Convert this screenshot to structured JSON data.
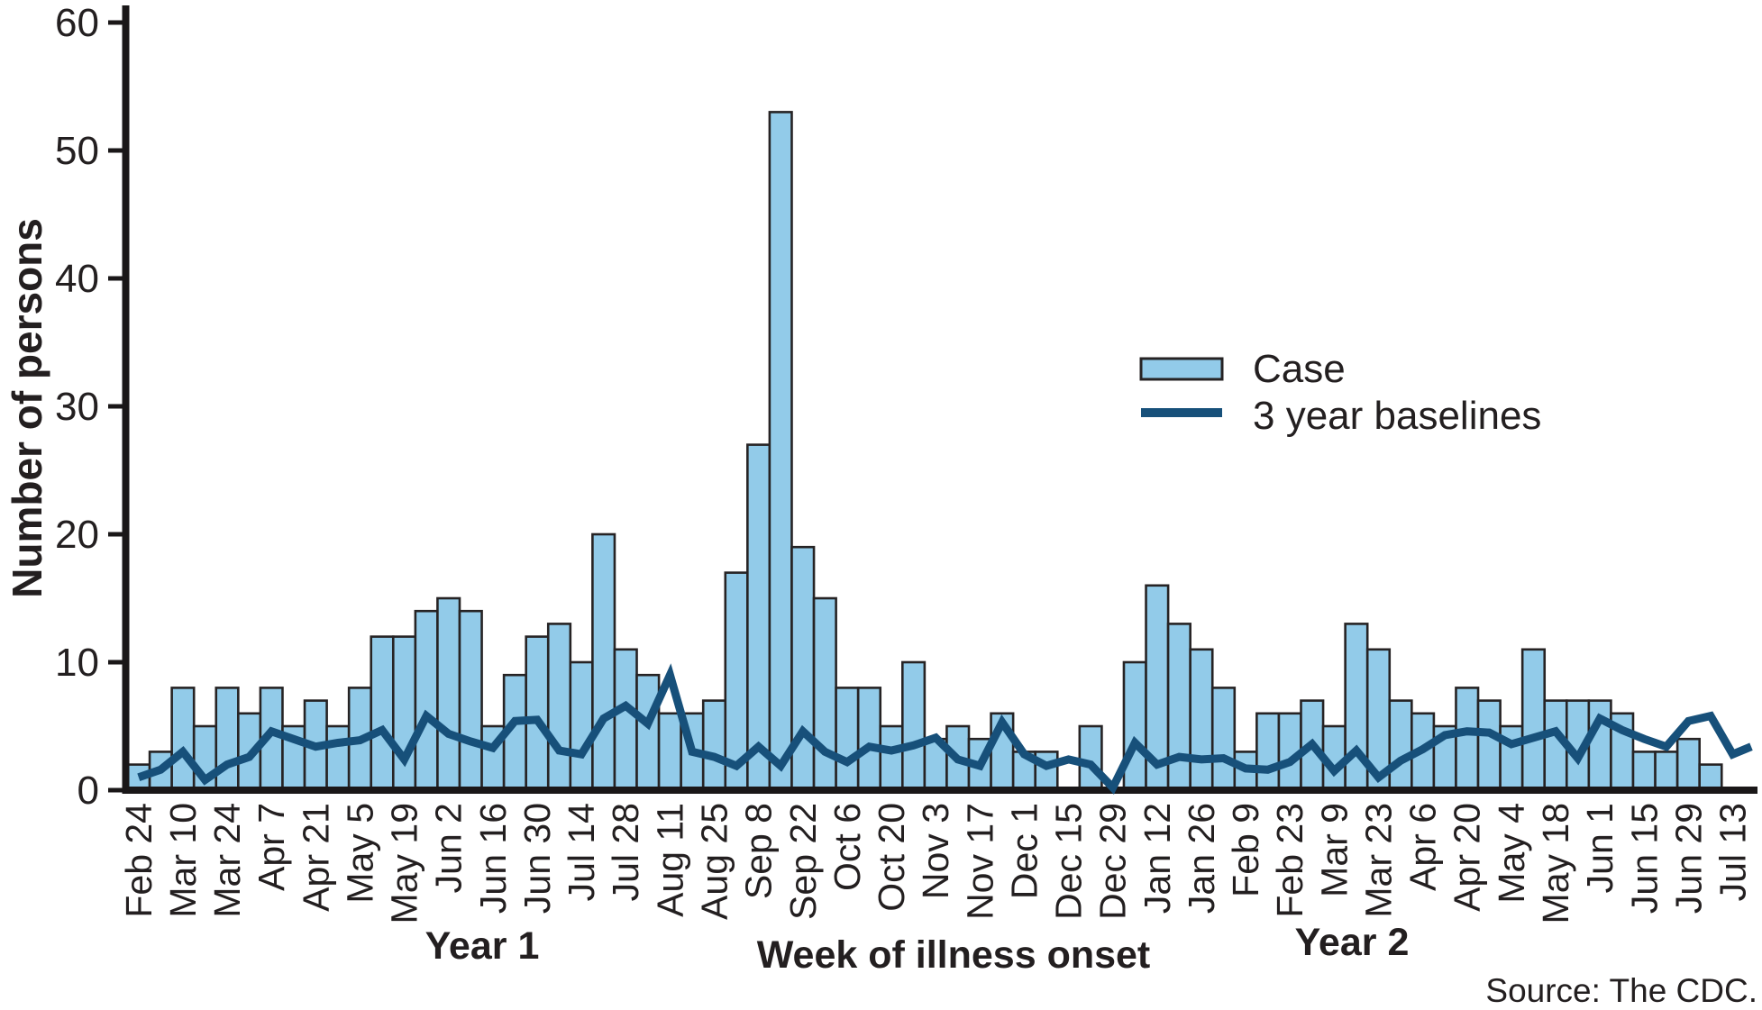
{
  "chart_data": {
    "type": "bar",
    "subtype": "epidemic-curve with overlaid baseline line",
    "title": "",
    "xlabel": "Week of illness onset",
    "ylabel": "Number of persons",
    "ylim": [
      0,
      60
    ],
    "yticks": [
      0,
      10,
      20,
      30,
      40,
      50,
      60
    ],
    "x_tick_labels": [
      "Feb 24",
      "Mar 10",
      "Mar 24",
      "Apr 7",
      "Apr 21",
      "May 5",
      "May 19",
      "Jun 2",
      "Jun 16",
      "Jun 30",
      "Jul 14",
      "Jul 28",
      "Aug 11",
      "Aug 25",
      "Sep 8",
      "Sep 22",
      "Oct 6",
      "Oct 20",
      "Nov 3",
      "Nov 17",
      "Dec 1",
      "Dec 15",
      "Dec 29",
      "Jan 12",
      "Jan 26",
      "Feb 9",
      "Feb 23",
      "Mar 9",
      "Mar 23",
      "Apr 6",
      "Apr 20",
      "May 4",
      "May 18",
      "Jun 1",
      "Jun 15",
      "Jun 29",
      "Jul 13"
    ],
    "x_tick_every_n_bars": 2,
    "weeks_total": 73,
    "series": [
      {
        "name": "Case",
        "type": "bar",
        "values": [
          2,
          3,
          8,
          5,
          8,
          6,
          8,
          5,
          7,
          5,
          8,
          12,
          12,
          14,
          15,
          14,
          5,
          9,
          12,
          13,
          10,
          20,
          11,
          9,
          6,
          6,
          7,
          17,
          27,
          53,
          19,
          15,
          8,
          8,
          5,
          10,
          4,
          5,
          4,
          6,
          3,
          3,
          0,
          5,
          0,
          10,
          16,
          13,
          11,
          8,
          3,
          6,
          6,
          7,
          5,
          13,
          11,
          7,
          6,
          5,
          8,
          7,
          5,
          11,
          7,
          7,
          7,
          6,
          3,
          3,
          4,
          2,
          0
        ]
      },
      {
        "name": "3 year baselines",
        "type": "line",
        "note": "estimated from pixels; last point extends one half-week past final bar",
        "values": [
          1.0,
          1.6,
          3.0,
          0.8,
          2.0,
          2.6,
          4.6,
          4.0,
          3.4,
          3.7,
          3.9,
          4.7,
          2.4,
          5.8,
          4.4,
          3.8,
          3.3,
          5.4,
          5.5,
          3.1,
          2.8,
          5.6,
          6.6,
          5.2,
          9.0,
          3.0,
          2.6,
          1.9,
          3.4,
          1.9,
          4.6,
          3.0,
          2.2,
          3.4,
          3.1,
          3.5,
          4.1,
          2.4,
          1.9,
          5.3,
          2.8,
          1.9,
          2.4,
          2.0,
          0.2,
          3.7,
          2.0,
          2.6,
          2.4,
          2.5,
          1.7,
          1.6,
          2.2,
          3.6,
          1.5,
          3.1,
          1.0,
          2.3,
          3.2,
          4.3,
          4.6,
          4.5,
          3.6,
          4.1,
          4.6,
          2.5,
          5.6,
          4.7,
          4.0,
          3.4,
          5.4,
          5.8,
          2.8,
          3.4
        ]
      }
    ],
    "annotations": {
      "year1": "Year 1",
      "year2": "Year 2"
    },
    "source": "Source: The CDC.",
    "legend_position": "upper right inside plot",
    "grid": false
  },
  "legend": {
    "case_label": "Case",
    "baseline_label": "3 year baselines"
  },
  "colors": {
    "bar_fill": "#92cbe9",
    "bar_stroke": "#262324",
    "baseline_line": "#17507a",
    "axis": "#1a1718",
    "text": "#231f20",
    "background": "#ffffff"
  }
}
